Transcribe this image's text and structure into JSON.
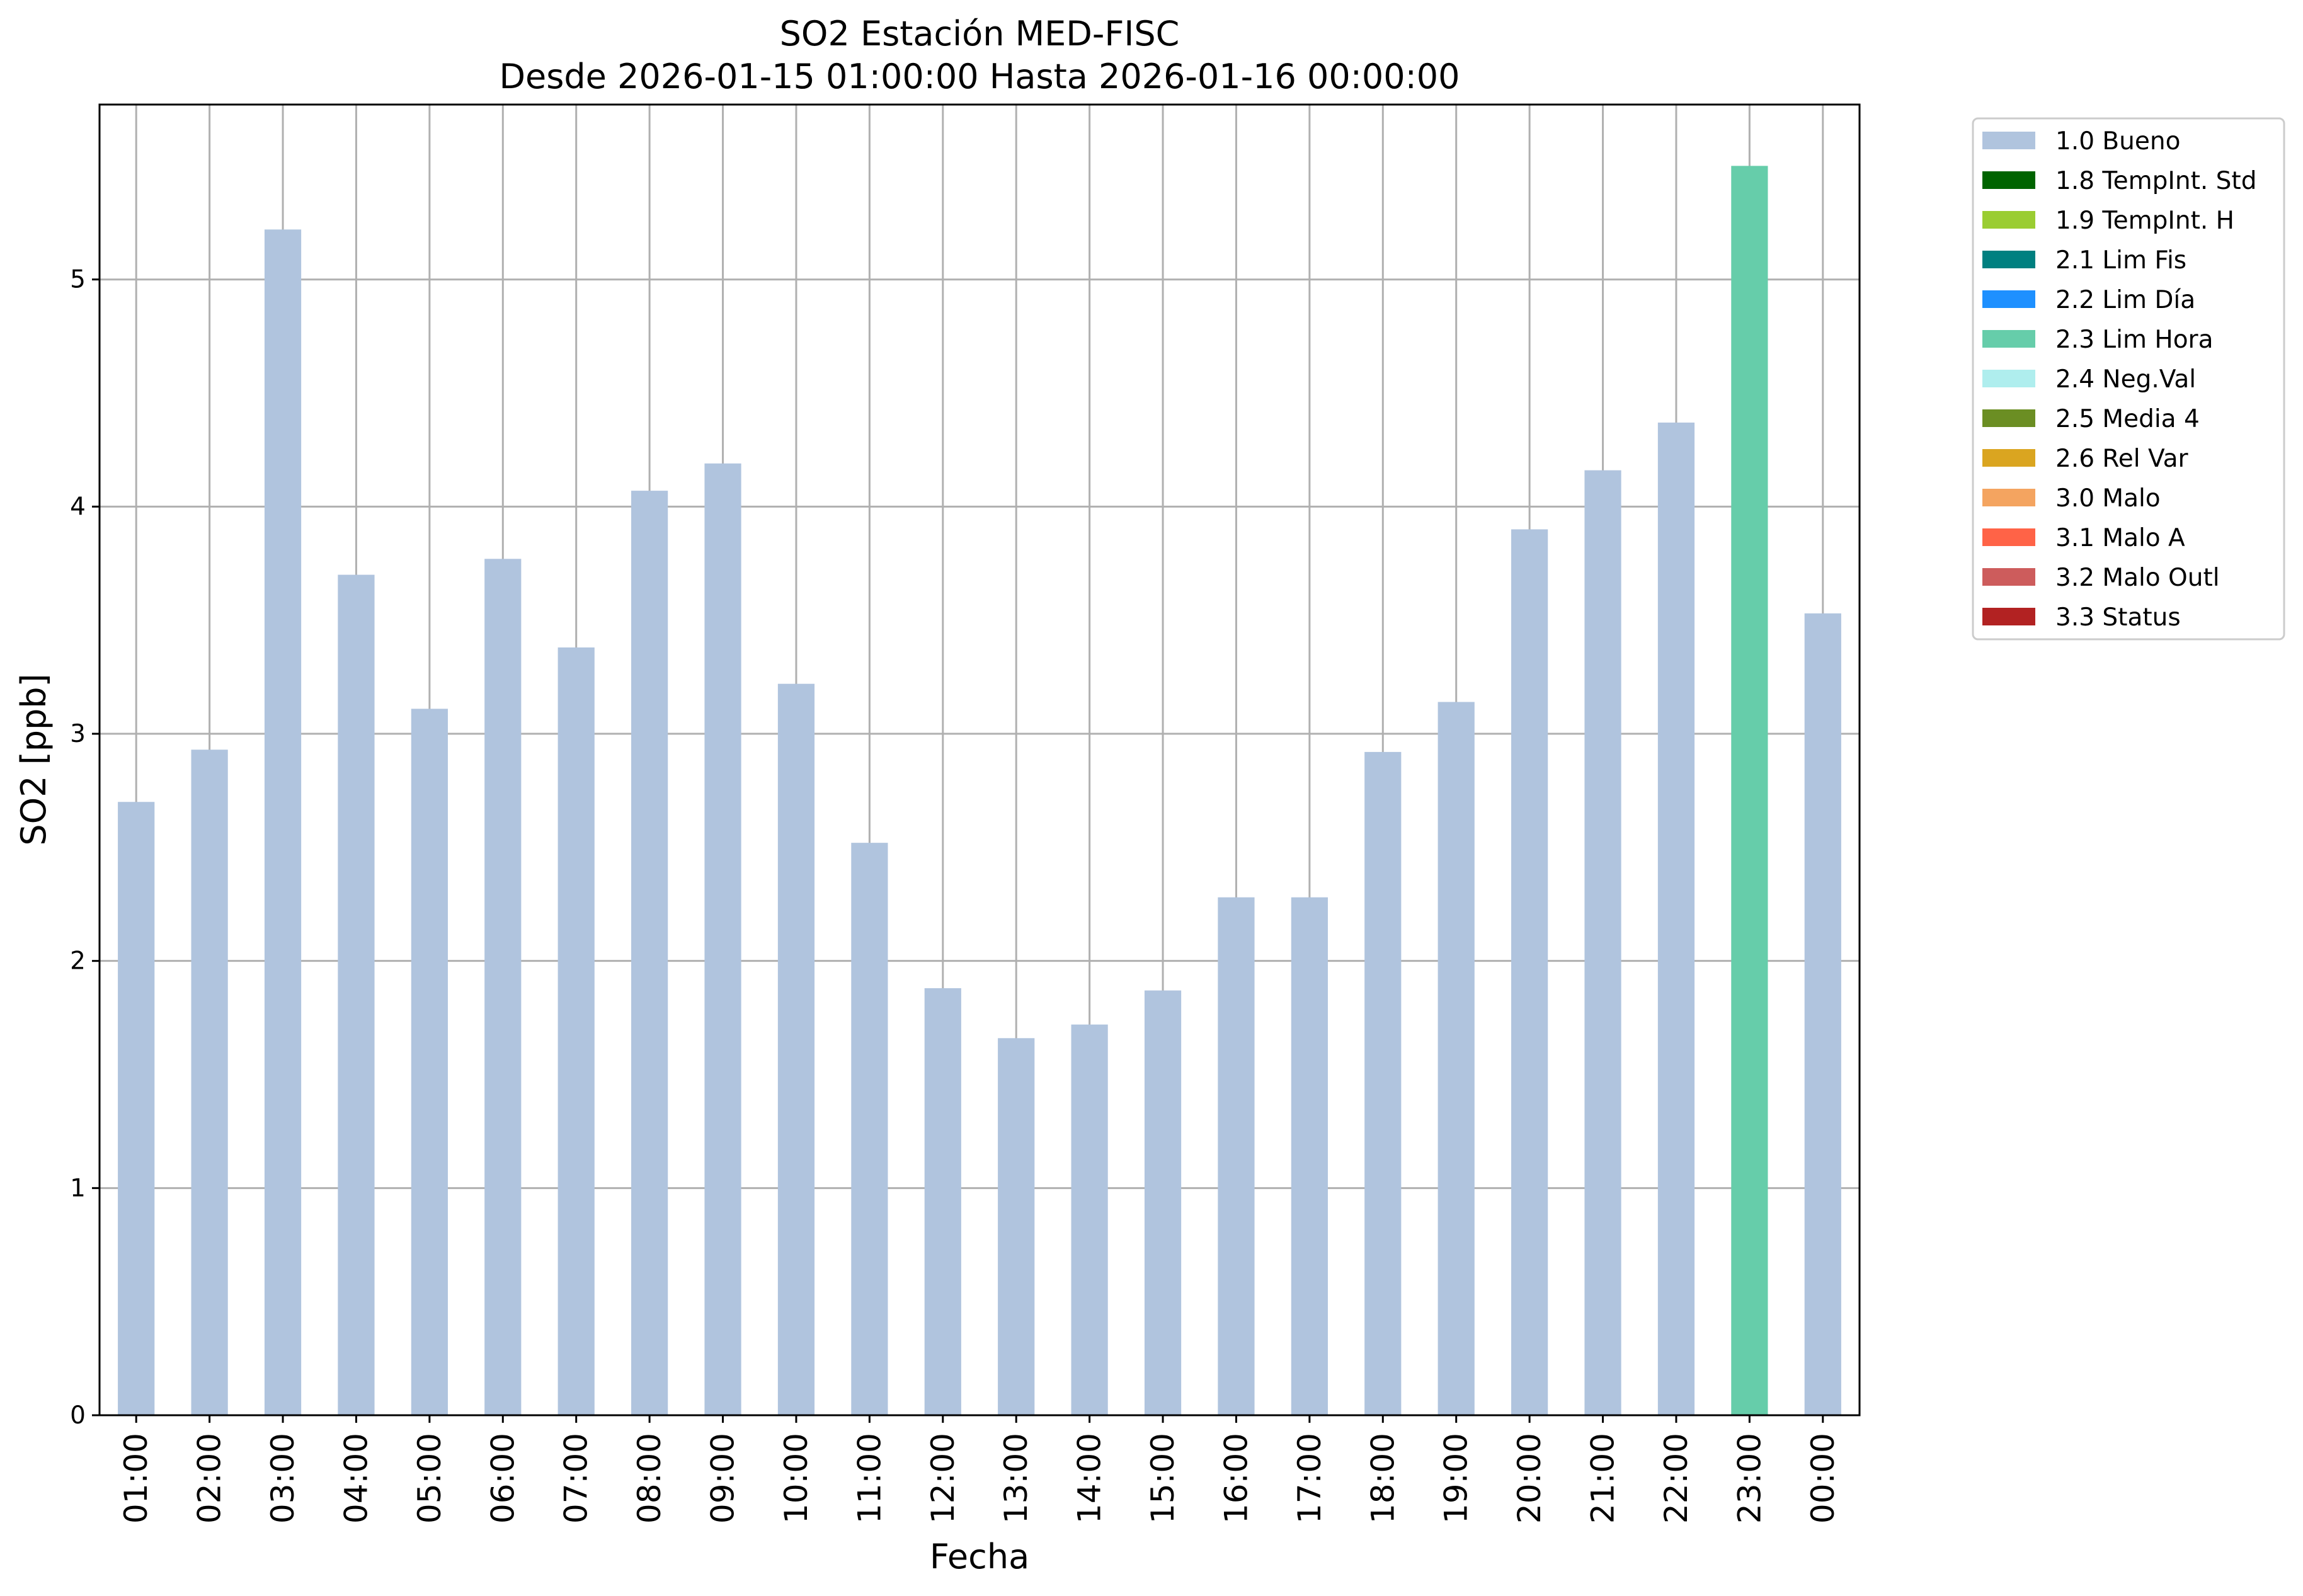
{
  "chart_data": {
    "type": "bar",
    "title": "SO2 Estación MED-FISC",
    "subtitle": "Desde 2026-01-15 01:00:00 Hasta 2026-01-16 00:00:00",
    "xlabel": "Fecha",
    "ylabel": "SO2 [ppb]",
    "ylim": [
      0,
      5.77
    ],
    "yticks": [
      0,
      1,
      2,
      3,
      4,
      5
    ],
    "grid": true,
    "legend_position": "outside-top-right",
    "categories": [
      "01:00",
      "02:00",
      "03:00",
      "04:00",
      "05:00",
      "06:00",
      "07:00",
      "08:00",
      "09:00",
      "10:00",
      "11:00",
      "12:00",
      "13:00",
      "14:00",
      "15:00",
      "16:00",
      "17:00",
      "18:00",
      "19:00",
      "20:00",
      "21:00",
      "22:00",
      "23:00",
      "00:00"
    ],
    "values": [
      2.7,
      2.93,
      5.22,
      3.7,
      3.11,
      3.77,
      3.38,
      4.07,
      4.19,
      3.22,
      2.52,
      1.88,
      1.66,
      1.72,
      1.87,
      2.28,
      2.28,
      2.92,
      3.14,
      3.9,
      4.16,
      4.37,
      5.5,
      3.53
    ],
    "flags": [
      "1.0 Bueno",
      "1.0 Bueno",
      "1.0 Bueno",
      "1.0 Bueno",
      "1.0 Bueno",
      "1.0 Bueno",
      "1.0 Bueno",
      "1.0 Bueno",
      "1.0 Bueno",
      "1.0 Bueno",
      "1.0 Bueno",
      "1.0 Bueno",
      "1.0 Bueno",
      "1.0 Bueno",
      "1.0 Bueno",
      "1.0 Bueno",
      "1.0 Bueno",
      "1.0 Bueno",
      "1.0 Bueno",
      "1.0 Bueno",
      "1.0 Bueno",
      "1.0 Bueno",
      "2.3 Lim Hora",
      "1.0 Bueno"
    ],
    "legend": [
      {
        "label": "1.0 Bueno",
        "color": "#b0c4de"
      },
      {
        "label": "1.8 TempInt. Std",
        "color": "#006400"
      },
      {
        "label": "1.9 TempInt. H",
        "color": "#9acd32"
      },
      {
        "label": "2.1 Lim Fis",
        "color": "#008080"
      },
      {
        "label": "2.2 Lim Día",
        "color": "#1e90ff"
      },
      {
        "label": "2.3 Lim Hora",
        "color": "#66cdaa"
      },
      {
        "label": "2.4 Neg.Val",
        "color": "#afeeee"
      },
      {
        "label": "2.5 Media 4",
        "color": "#6b8e23"
      },
      {
        "label": "2.6 Rel Var",
        "color": "#daa520"
      },
      {
        "label": "3.0 Malo",
        "color": "#f4a460"
      },
      {
        "label": "3.1 Malo A",
        "color": "#ff6347"
      },
      {
        "label": "3.2 Malo Outl",
        "color": "#cd5c5c"
      },
      {
        "label": "3.3 Status",
        "color": "#b22222"
      }
    ]
  }
}
